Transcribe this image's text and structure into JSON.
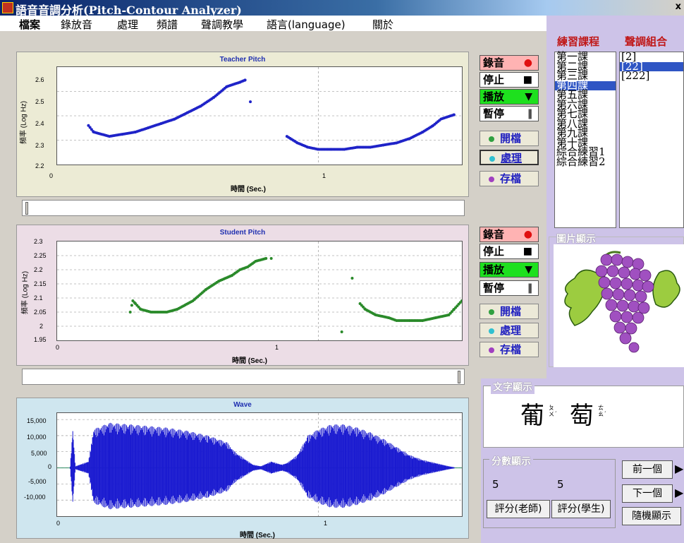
{
  "app": {
    "title": "語音音調分析(Pitch-Contour Analyzer)",
    "close": "x"
  },
  "menu": [
    "檔案",
    "錄放音",
    "處理",
    "頻譜",
    "聲調教學",
    "語言(language)",
    "關於"
  ],
  "teacher_chart": {
    "title": "Teacher Pitch",
    "xlabel": "時間 (Sec.)",
    "ylabel": "頻率 (Log Hz)",
    "yticks": [
      "2.6",
      "2.5",
      "2.4",
      "2.3",
      "2.2"
    ],
    "xticks": [
      "0",
      "1"
    ]
  },
  "student_chart": {
    "title": "Student Pitch",
    "xlabel": "時間 (Sec.)",
    "ylabel": "頻率 (Log Hz)",
    "yticks": [
      "2.3",
      "2.25",
      "2.2",
      "2.15",
      "2.1",
      "2.05",
      "2",
      "1.95"
    ],
    "xticks": [
      "0",
      "1"
    ]
  },
  "wave_chart": {
    "title": "Wave",
    "xlabel": "時間 (Sec.)",
    "yticks": [
      "15,000",
      "10,000",
      "5,000",
      "0",
      "-5,000",
      "-10,000"
    ],
    "xticks": [
      "0",
      "1"
    ]
  },
  "chart_data": [
    {
      "type": "scatter",
      "title": "Teacher Pitch",
      "xlabel": "時間 (Sec.)",
      "ylabel": "頻率 (Log Hz)",
      "xlim": [
        0,
        1.55
      ],
      "ylim": [
        2.2,
        2.65
      ],
      "series": [
        {
          "color": "#1f23c8",
          "segments": [
            {
              "x": [
                0.12,
                0.14,
                0.17,
                0.2,
                0.25,
                0.3,
                0.35,
                0.4,
                0.45,
                0.5,
                0.55,
                0.6,
                0.65,
                0.7,
                0.72
              ],
              "y": [
                2.38,
                2.35,
                2.34,
                2.33,
                2.34,
                2.35,
                2.37,
                2.39,
                2.41,
                2.44,
                2.47,
                2.51,
                2.56,
                2.58,
                2.59
              ]
            },
            {
              "x": [
                0.74
              ],
              "y": [
                2.49
              ]
            },
            {
              "x": [
                0.88,
                0.92,
                0.96,
                1.0,
                1.05,
                1.1,
                1.15,
                1.2,
                1.25,
                1.3,
                1.35,
                1.4,
                1.44,
                1.47,
                1.52
              ],
              "y": [
                2.33,
                2.3,
                2.28,
                2.27,
                2.27,
                2.27,
                2.28,
                2.28,
                2.29,
                2.3,
                2.32,
                2.35,
                2.38,
                2.41,
                2.43
              ]
            }
          ]
        }
      ]
    },
    {
      "type": "scatter",
      "title": "Student Pitch",
      "xlabel": "時間 (Sec.)",
      "ylabel": "頻率 (Log Hz)",
      "xlim": [
        0,
        1.55
      ],
      "ylim": [
        1.95,
        2.3
      ],
      "series": [
        {
          "color": "#2a8a2a",
          "segments": [
            {
              "x": [
                0.28,
                0.29,
                0.3,
                0.32,
                0.36,
                0.42,
                0.46,
                0.52,
                0.57,
                0.62,
                0.67,
                0.7,
                0.73,
                0.76,
                0.8
              ],
              "y": [
                2.05,
                2.09,
                2.08,
                2.06,
                2.05,
                2.05,
                2.06,
                2.09,
                2.13,
                2.16,
                2.18,
                2.2,
                2.21,
                2.23,
                2.24
              ]
            },
            {
              "x": [
                0.82
              ],
              "y": [
                2.24
              ]
            },
            {
              "x": [
                1.09
              ],
              "y": [
                1.98
              ]
            },
            {
              "x": [
                1.13
              ],
              "y": [
                2.17
              ]
            },
            {
              "x": [
                1.16,
                1.18,
                1.22,
                1.27,
                1.3,
                1.35,
                1.4,
                1.45,
                1.5,
                1.52,
                1.55
              ],
              "y": [
                2.08,
                2.06,
                2.04,
                2.03,
                2.02,
                2.02,
                2.02,
                2.03,
                2.04,
                2.06,
                2.09
              ]
            }
          ]
        }
      ]
    },
    {
      "type": "area",
      "title": "Wave",
      "xlabel": "時間 (Sec.)",
      "xlim": [
        0,
        1.55
      ],
      "ylim": [
        -15000,
        17000
      ],
      "series": [
        {
          "color": "#1a1ad0",
          "x": [
            0.05,
            0.06,
            0.07,
            0.12,
            0.14,
            0.2,
            0.28,
            0.35,
            0.42,
            0.5,
            0.58,
            0.65,
            0.68,
            0.75,
            0.78,
            0.82,
            0.86,
            0.88,
            0.92,
            0.96,
            1.0,
            1.05,
            1.1,
            1.15,
            1.2,
            1.25,
            1.3,
            1.35,
            1.4,
            1.45,
            1.5,
            1.52
          ],
          "amplitude": [
            500,
            12000,
            500,
            2000,
            12000,
            14000,
            13500,
            13000,
            12500,
            11500,
            10000,
            8000,
            5000,
            1000,
            500,
            2000,
            1000,
            1500,
            4000,
            10000,
            12000,
            13500,
            13500,
            12500,
            11000,
            9000,
            6500,
            4000,
            2500,
            1500,
            500,
            200
          ]
        }
      ]
    }
  ],
  "teacher_controls": {
    "record": "錄音",
    "stop": "停止",
    "play": "播放",
    "pause": "暫停",
    "open": "開檔",
    "process": "處理",
    "save": "存檔"
  },
  "student_controls": {
    "record": "錄音",
    "stop": "停止",
    "play": "播放",
    "pause": "暫停",
    "open": "開檔",
    "process": "處理",
    "save": "存檔"
  },
  "lessons": {
    "header": "練習課程",
    "items": [
      "第一課",
      "第二課",
      "第三課",
      "第四課",
      "第五課",
      "第六課",
      "第七課",
      "第八課",
      "第九課",
      "第十課",
      "綜合練習1",
      "綜合練習2"
    ],
    "selected_index": 3
  },
  "tone_groups": {
    "header": "聲調組合",
    "items": [
      "[2]",
      "[22]",
      "[222]"
    ],
    "selected_index": 1
  },
  "picture": {
    "header": "圖片顯示"
  },
  "text_display": {
    "header": "文字顯示",
    "char1": "葡",
    "bopo1": "ㄆㄨˊ",
    "char2": "萄",
    "bopo2": "ㄊㄠˊ"
  },
  "score": {
    "header": "分數顯示",
    "teacher_value": "5",
    "student_value": "5",
    "teacher_btn": "評分(老師)",
    "student_btn": "評分(學生)"
  },
  "nav": {
    "prev": "前一個",
    "next": "下一個",
    "random": "隨機顯示"
  },
  "colors": {
    "teacher_panel": "#ecebd5",
    "student_panel": "#ecdde6",
    "wave_panel": "#cfe6ef",
    "teacher_points": "#1f23c8",
    "student_points": "#2a8a2a",
    "wave": "#1a1ad0",
    "right_panel": "#cdc3e8"
  }
}
